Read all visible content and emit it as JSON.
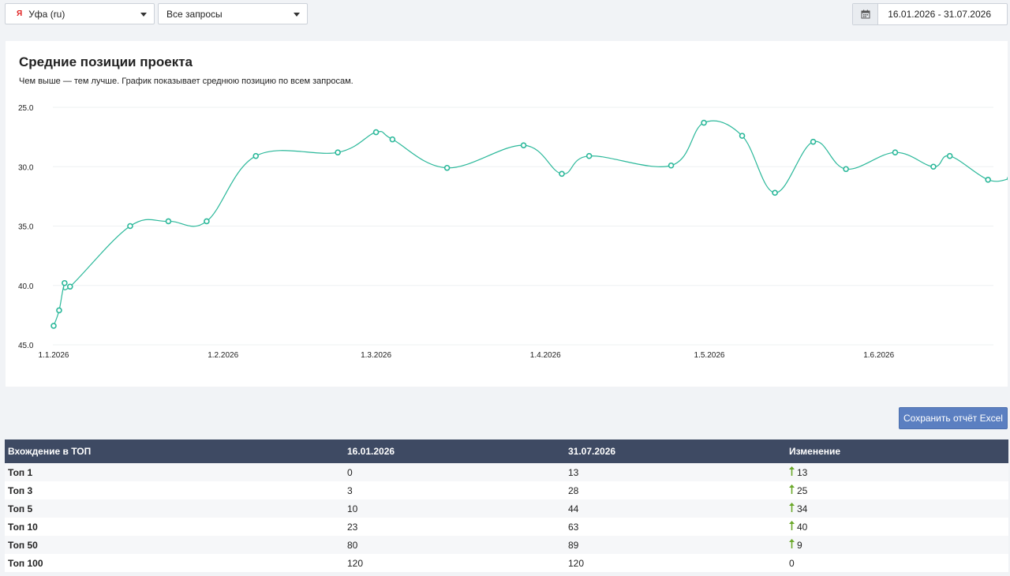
{
  "filters": {
    "region": "Уфа (ru)",
    "region_icon": "yandex-logo-icon",
    "queries": "Все запросы",
    "date_range": "16.01.2026 - 31.07.2026",
    "calendar_icon": "calendar-icon"
  },
  "card": {
    "title": "Средние позиции проекта",
    "subtitle": "Чем выше — тем лучше. График показывает среднюю позицию по всем запросам."
  },
  "colors": {
    "line": "#2bb89a",
    "header_bg": "#3e4a63",
    "button": "#5b7fc1",
    "up": "#6aa82a"
  },
  "chart_data": {
    "type": "line",
    "title": "Средние позиции проекта",
    "xlabel": "",
    "ylabel": "",
    "y_inverted": true,
    "ylim": [
      25,
      45
    ],
    "yticks": [
      "25.0",
      "30.0",
      "35.0",
      "40.0",
      "45.0"
    ],
    "ytick_values": [
      25,
      30,
      35,
      40,
      45
    ],
    "xticks": [
      {
        "label": "1.1.2026",
        "day": 0
      },
      {
        "label": "1.2.2026",
        "day": 31
      },
      {
        "label": "1.3.2026",
        "day": 59
      },
      {
        "label": "1.4.2026",
        "day": 90
      },
      {
        "label": "1.5.2026",
        "day": 120
      },
      {
        "label": "1.6.2026",
        "day": 151
      }
    ],
    "grid": true,
    "series": [
      {
        "points": [
          {
            "x": "2026-01-01",
            "y": 43.4
          },
          {
            "x": "2026-01-02",
            "y": 42.1
          },
          {
            "x": "2026-01-03",
            "y": 39.8
          },
          {
            "x": "2026-01-04",
            "y": 40.1
          },
          {
            "x": "2026-01-15",
            "y": 35.0
          },
          {
            "x": "2026-01-22",
            "y": 34.6
          },
          {
            "x": "2026-01-29",
            "y": 34.6
          },
          {
            "x": "2026-02-07",
            "y": 29.1
          },
          {
            "x": "2026-02-22",
            "y": 28.8
          },
          {
            "x": "2026-03-01",
            "y": 27.1
          },
          {
            "x": "2026-03-04",
            "y": 27.7
          },
          {
            "x": "2026-03-14",
            "y": 30.1
          },
          {
            "x": "2026-03-28",
            "y": 28.2
          },
          {
            "x": "2026-04-04",
            "y": 30.6
          },
          {
            "x": "2026-04-09",
            "y": 29.1
          },
          {
            "x": "2026-04-24",
            "y": 29.9
          },
          {
            "x": "2026-04-30",
            "y": 26.3
          },
          {
            "x": "2026-05-07",
            "y": 27.4
          },
          {
            "x": "2026-05-13",
            "y": 32.2
          },
          {
            "x": "2026-05-20",
            "y": 27.9
          },
          {
            "x": "2026-05-26",
            "y": 30.2
          },
          {
            "x": "2026-06-04",
            "y": 28.8
          },
          {
            "x": "2026-06-11",
            "y": 30.0
          },
          {
            "x": "2026-06-14",
            "y": 29.1
          },
          {
            "x": "2026-06-21",
            "y": 31.1
          },
          {
            "x": "2026-06-25",
            "y": 31.0
          }
        ]
      }
    ]
  },
  "actions": {
    "save_excel": "Сохранить отчёт Excel"
  },
  "table": {
    "headers": [
      "Вхождение в ТОП",
      "16.01.2026",
      "31.07.2026",
      "Изменение"
    ],
    "rows": [
      {
        "name": "Топ 1",
        "start": "0",
        "end": "13",
        "change": "13",
        "dir": "up"
      },
      {
        "name": "Топ 3",
        "start": "3",
        "end": "28",
        "change": "25",
        "dir": "up"
      },
      {
        "name": "Топ 5",
        "start": "10",
        "end": "44",
        "change": "34",
        "dir": "up"
      },
      {
        "name": "Топ 10",
        "start": "23",
        "end": "63",
        "change": "40",
        "dir": "up"
      },
      {
        "name": "Топ 50",
        "start": "80",
        "end": "89",
        "change": "9",
        "dir": "up"
      },
      {
        "name": "Топ 100",
        "start": "120",
        "end": "120",
        "change": "0",
        "dir": "none"
      }
    ]
  }
}
